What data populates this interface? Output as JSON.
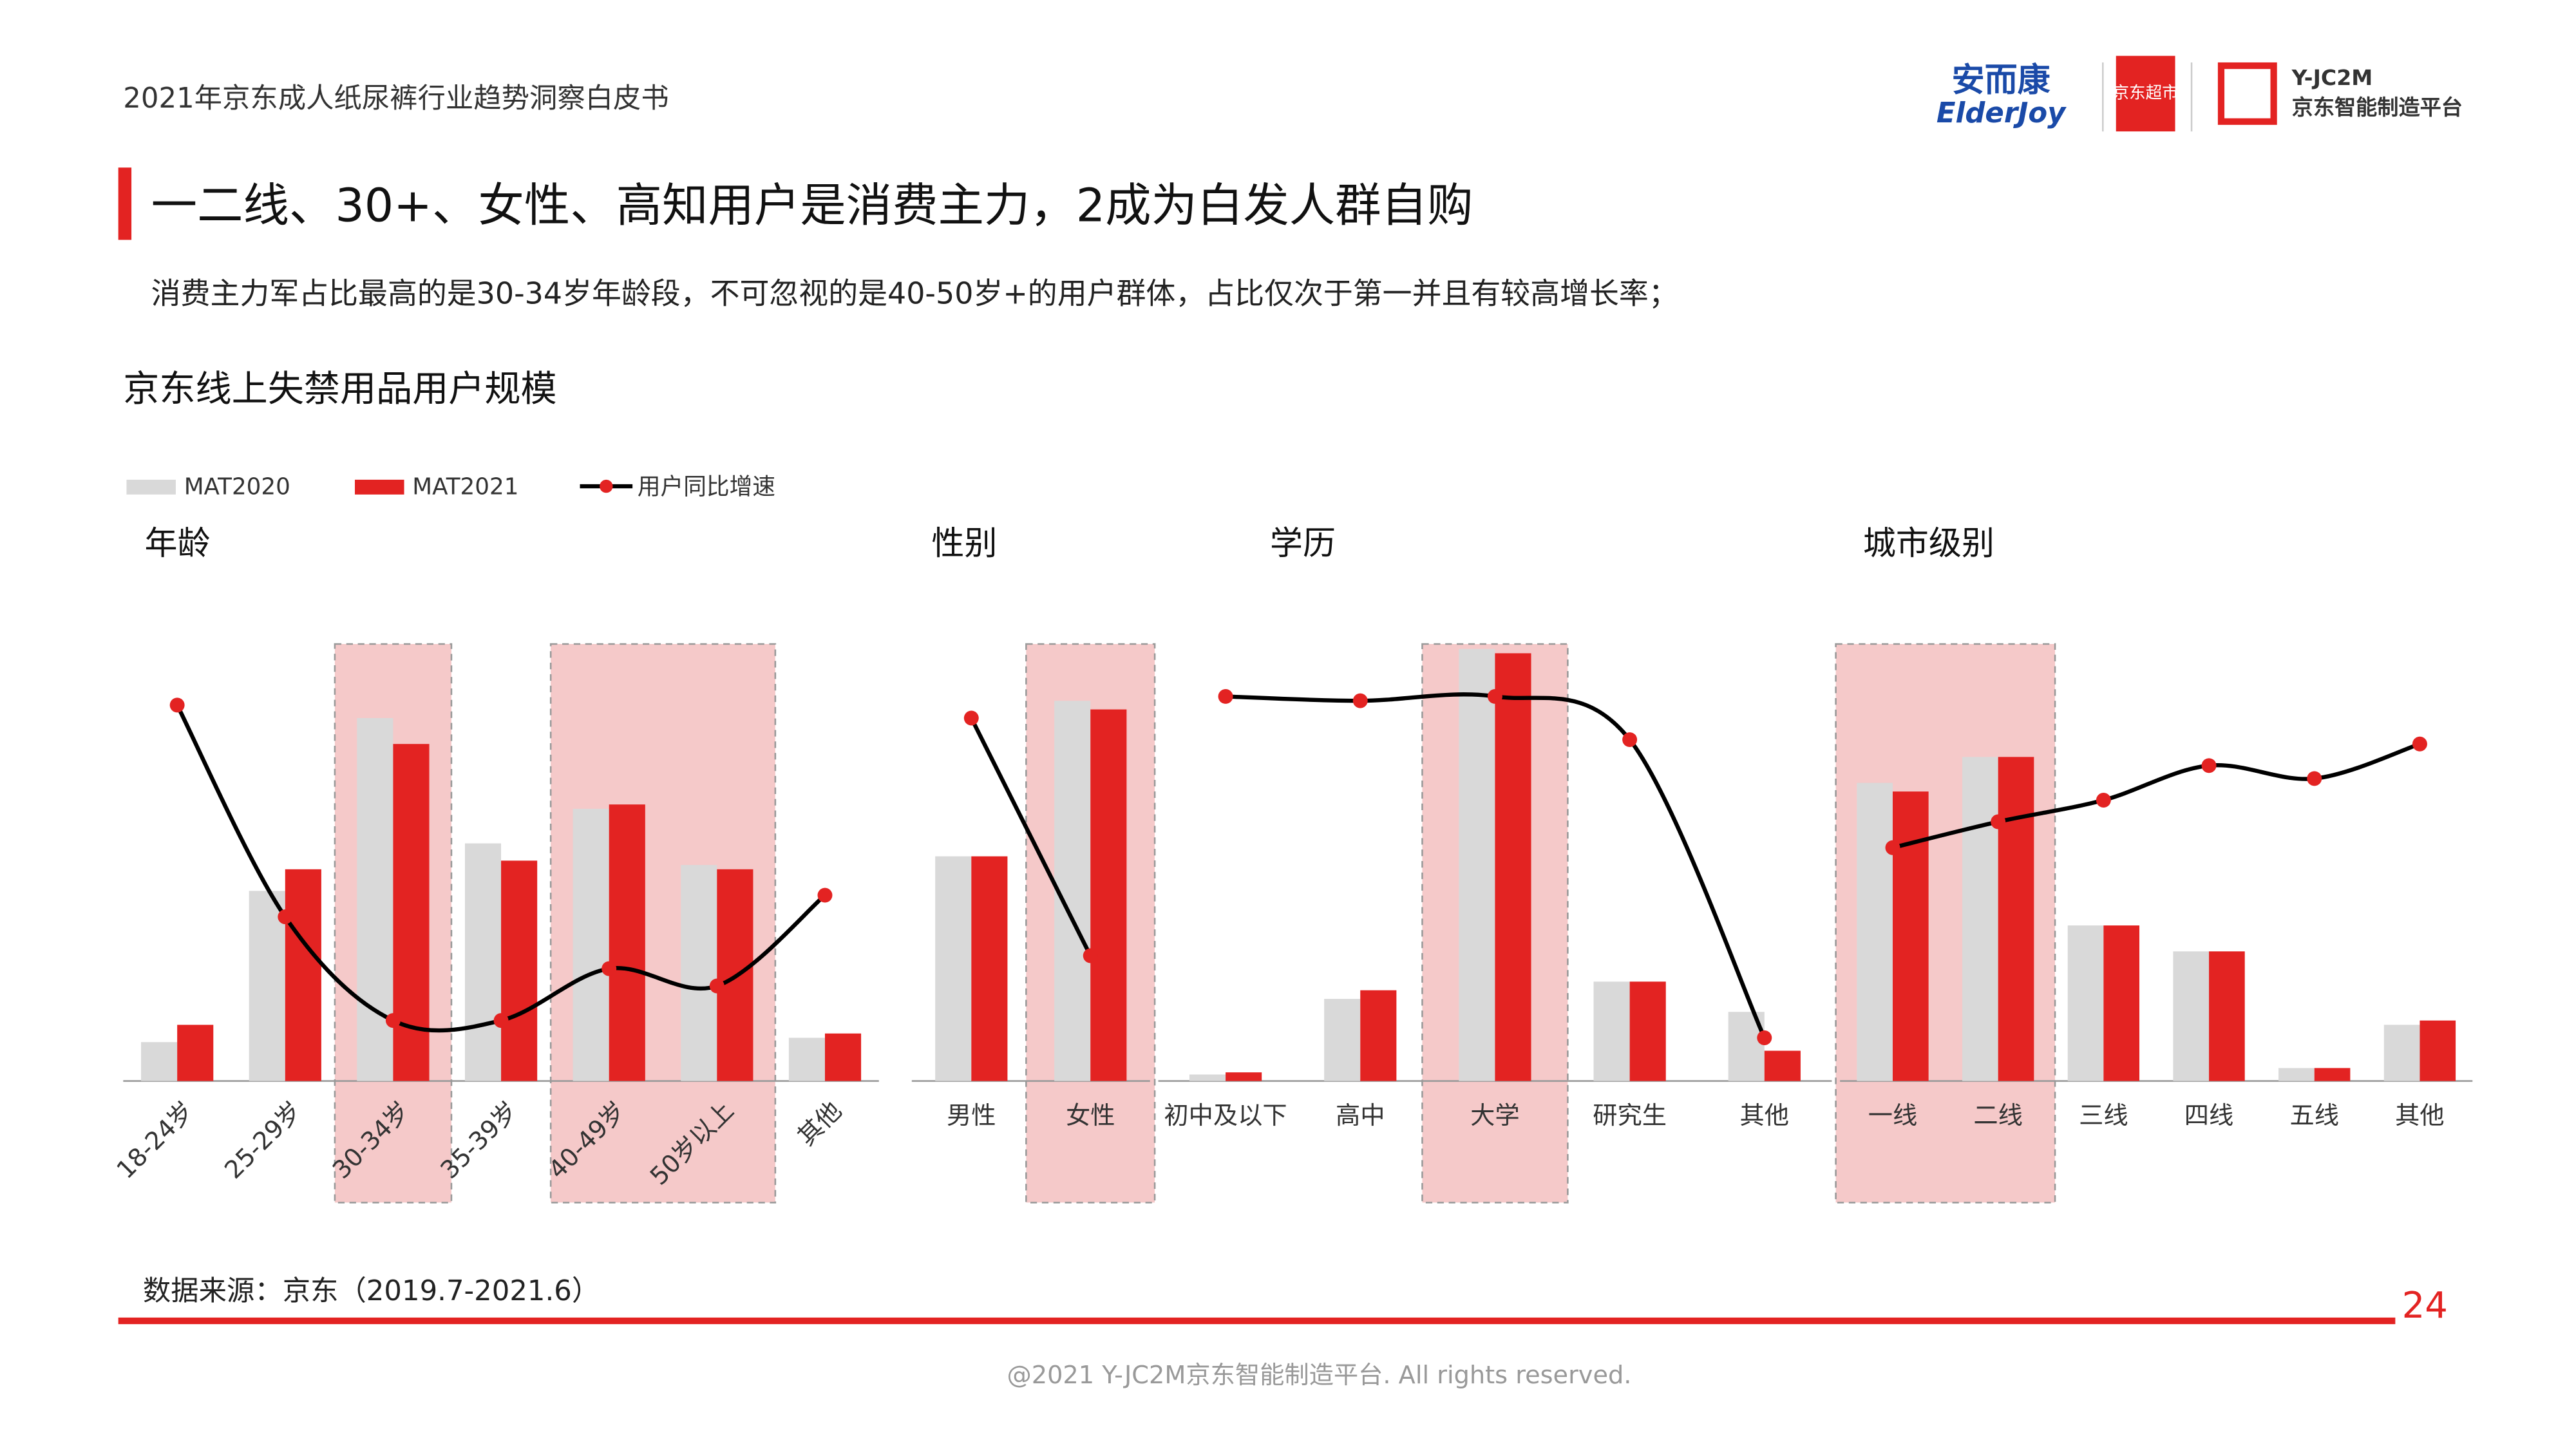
{
  "header": {
    "report_title": "2021年京东成人纸尿裤行业趋势洞察白皮书",
    "logos": [
      "安而康",
      "ElderJoy",
      "京东超市",
      "Y-JC2M",
      "京东智能制造平台"
    ]
  },
  "title": "一二线、30+、女性、高知用户是消费主力，2成为白发人群自购",
  "subtitle": "消费主力军占比最高的是30-34岁年龄段，不可忽视的是40-50岁+的用户群体，占比仅次于第一并且有较高增长率；",
  "section_title": "京东线上失禁用品用户规模",
  "chart_data": [
    {
      "type": "bar_line",
      "title": "年龄",
      "categories": [
        "18-24岁",
        "25-29岁",
        "30-34岁",
        "35-39岁",
        "40-49岁",
        "50岁以上",
        "其他"
      ],
      "series": [
        {
          "name": "MAT2020",
          "color": "#d9d9d9",
          "values": [
            9,
            44,
            84,
            55,
            63,
            50,
            10
          ]
        },
        {
          "name": "MAT2021",
          "color": "#e32322",
          "values": [
            13,
            49,
            78,
            51,
            64,
            49,
            11
          ]
        },
        {
          "name": "用户同比增速",
          "color": "#000000",
          "axis": "y2",
          "values": [
            87,
            38,
            14,
            14,
            26,
            22,
            43
          ]
        }
      ],
      "ylim": [
        0,
        100
      ],
      "y2lim": [
        0,
        100
      ],
      "highlight": [
        [
          2,
          2
        ],
        [
          4,
          5
        ]
      ],
      "rotate_labels": true
    },
    {
      "type": "bar_line",
      "title": "性别",
      "categories": [
        "男性",
        "女性"
      ],
      "series": [
        {
          "name": "MAT2020",
          "color": "#d9d9d9",
          "values": [
            52,
            88
          ]
        },
        {
          "name": "MAT2021",
          "color": "#e32322",
          "values": [
            52,
            86
          ]
        },
        {
          "name": "用户同比增速",
          "color": "#000000",
          "axis": "y2",
          "values": [
            84,
            29
          ]
        }
      ],
      "ylim": [
        0,
        100
      ],
      "y2lim": [
        0,
        100
      ],
      "highlight": [
        [
          1,
          1
        ]
      ],
      "rotate_labels": false
    },
    {
      "type": "bar_line",
      "title": "学历",
      "categories": [
        "初中及以下",
        "高中",
        "大学",
        "研究生",
        "其他"
      ],
      "series": [
        {
          "name": "MAT2020",
          "color": "#d9d9d9",
          "values": [
            1.5,
            19,
            100,
            23,
            16
          ]
        },
        {
          "name": "MAT2021",
          "color": "#e32322",
          "values": [
            2,
            21,
            99,
            23,
            7
          ]
        },
        {
          "name": "用户同比增速",
          "color": "#000000",
          "axis": "y2",
          "values": [
            89,
            88,
            89,
            79,
            10
          ]
        }
      ],
      "ylim": [
        0,
        100
      ],
      "y2lim": [
        0,
        100
      ],
      "highlight": [
        [
          2,
          2
        ]
      ],
      "rotate_labels": false
    },
    {
      "type": "bar_line",
      "title": "城市级别",
      "categories": [
        "一线",
        "二线",
        "三线",
        "四线",
        "五线",
        "其他"
      ],
      "series": [
        {
          "name": "MAT2020",
          "color": "#d9d9d9",
          "values": [
            69,
            75,
            36,
            30,
            3,
            13
          ]
        },
        {
          "name": "MAT2021",
          "color": "#e32322",
          "values": [
            67,
            75,
            36,
            30,
            3,
            14
          ]
        },
        {
          "name": "用户同比增速",
          "color": "#000000",
          "axis": "y2",
          "values": [
            54,
            60,
            65,
            73,
            70,
            78
          ]
        }
      ],
      "ylim": [
        0,
        100
      ],
      "y2lim": [
        0,
        100
      ],
      "highlight": [
        [
          0,
          1
        ]
      ],
      "rotate_labels": false
    }
  ],
  "source": "数据来源：京东（2019.7-2021.6）",
  "page_number": "24",
  "footer": "@2021 Y-JC2M京东智能制造平台. All rights reserved."
}
